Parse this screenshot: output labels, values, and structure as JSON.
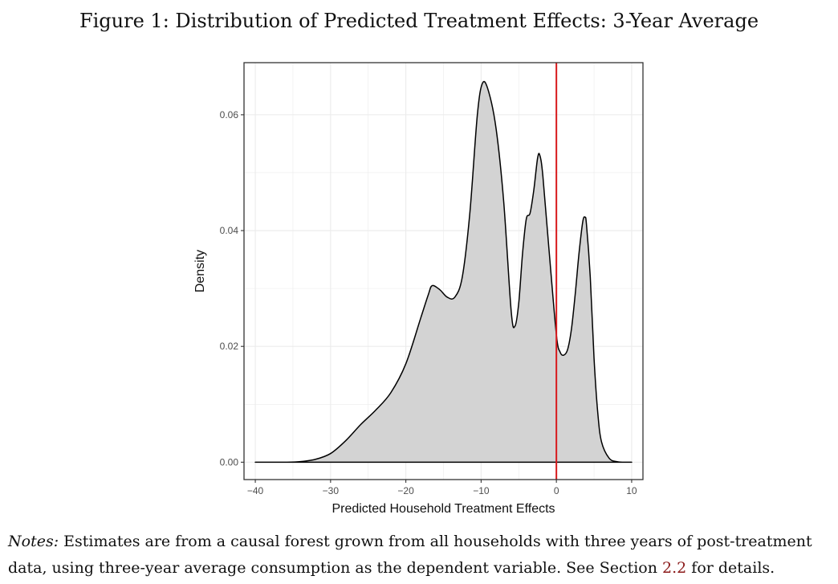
{
  "figure": {
    "caption": "Figure 1: Distribution of Predicted Treatment Effects: 3-Year Average"
  },
  "notes": {
    "label": "Notes:",
    "text_before": " Estimates are from a causal forest grown from all households with three years of post-treatment data, using three-year average consumption as the dependent variable. See Section ",
    "section_ref": "2.2",
    "text_after": " for details."
  },
  "colors": {
    "fill": "#d3d3d3",
    "line": "#000000",
    "vline": "#d7191c",
    "grid": "#ebebeb"
  },
  "chart_data": {
    "type": "area",
    "title": "",
    "xlabel": "Predicted Household Treatment Effects",
    "ylabel": "Density",
    "xlim": [
      -41.5,
      11.5
    ],
    "ylim": [
      -0.003,
      0.069
    ],
    "xticks": [
      -40,
      -30,
      -20,
      -10,
      0,
      10
    ],
    "xtick_labels": [
      "−40",
      "−30",
      "−20",
      "−10",
      "0",
      "10"
    ],
    "yticks": [
      0.0,
      0.02,
      0.04,
      0.06
    ],
    "ytick_labels": [
      "0.00",
      "0.02",
      "0.04",
      "0.06"
    ],
    "grid": true,
    "legend": "none",
    "vline": 0,
    "series": [
      {
        "x": [
          -40,
          -36,
          -34,
          -32,
          -30,
          -28,
          -26,
          -24,
          -22,
          -20,
          -18,
          -17,
          -16.5,
          -15.5,
          -14.5,
          -13.5,
          -12.5,
          -11.5,
          -10.5,
          -9.8,
          -9,
          -8,
          -7,
          -6,
          -5.5,
          -5,
          -4.5,
          -4,
          -3.5,
          -3,
          -2.5,
          -2.2,
          -1.8,
          -1,
          0,
          0.5,
          1,
          1.5,
          2,
          2.5,
          3,
          3.5,
          3.8,
          4,
          4.5,
          5,
          5.5,
          6,
          7,
          8,
          9,
          10
        ],
        "y": [
          0.0,
          0.0,
          0.0001,
          0.0005,
          0.0015,
          0.0037,
          0.0065,
          0.009,
          0.012,
          0.017,
          0.025,
          0.029,
          0.0305,
          0.0298,
          0.0285,
          0.0285,
          0.032,
          0.043,
          0.06,
          0.0655,
          0.064,
          0.0575,
          0.045,
          0.026,
          0.0235,
          0.0275,
          0.036,
          0.042,
          0.043,
          0.047,
          0.0525,
          0.053,
          0.0495,
          0.037,
          0.022,
          0.019,
          0.0185,
          0.0195,
          0.023,
          0.029,
          0.036,
          0.0415,
          0.0423,
          0.041,
          0.032,
          0.018,
          0.0085,
          0.0035,
          0.0007,
          0.0001,
          0.0,
          0.0
        ]
      }
    ]
  }
}
